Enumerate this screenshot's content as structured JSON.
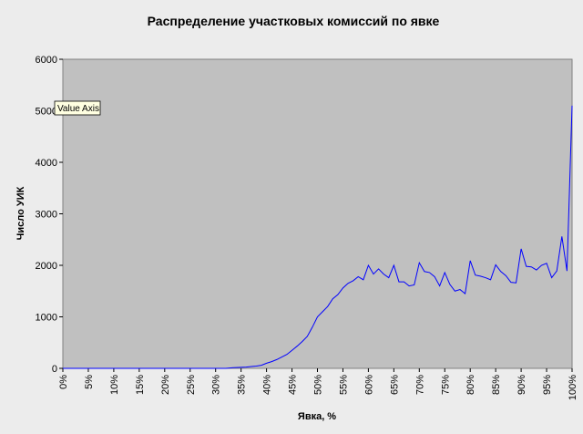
{
  "chart_data": {
    "type": "line",
    "title": "Распределение участковых комиссий по явке",
    "xlabel": "Явка, %",
    "ylabel": "Число УИК",
    "xlim": [
      0,
      100
    ],
    "ylim": [
      0,
      6000
    ],
    "x_tick_labels": [
      "0%",
      "5%",
      "10%",
      "15%",
      "20%",
      "25%",
      "30%",
      "35%",
      "40%",
      "45%",
      "50%",
      "55%",
      "60%",
      "65%",
      "70%",
      "75%",
      "80%",
      "85%",
      "90%",
      "95%",
      "100%"
    ],
    "y_tick_labels": [
      "0",
      "1000",
      "2000",
      "3000",
      "4000",
      "5000",
      "6000"
    ],
    "grid": false,
    "legend": "none",
    "tooltip": "Value Axis",
    "colors": {
      "plot_bg": "#c0c0c0",
      "page_bg": "#ececec",
      "line": "#0000ff",
      "tooltip_bg": "#ffffe1"
    },
    "series": [
      {
        "x": [
          0,
          1,
          2,
          3,
          4,
          5,
          6,
          7,
          8,
          9,
          10,
          11,
          12,
          13,
          14,
          15,
          16,
          17,
          18,
          19,
          20,
          21,
          22,
          23,
          24,
          25,
          26,
          27,
          28,
          29,
          30,
          31,
          32,
          33,
          34,
          35,
          36,
          37,
          38,
          39,
          40,
          41,
          42,
          43,
          44,
          45,
          46,
          47,
          48,
          49,
          50,
          51,
          52,
          53,
          54,
          55,
          56,
          57,
          58,
          59,
          60,
          61,
          62,
          63,
          64,
          65,
          66,
          67,
          68,
          69,
          70,
          71,
          72,
          73,
          74,
          75,
          76,
          77,
          78,
          79,
          80,
          81,
          82,
          83,
          84,
          85,
          86,
          87,
          88,
          89,
          90,
          91,
          92,
          93,
          94,
          95,
          96,
          97,
          98,
          99,
          100
        ],
        "values": [
          0,
          0,
          0,
          0,
          0,
          0,
          0,
          0,
          0,
          0,
          0,
          0,
          0,
          0,
          0,
          0,
          0,
          0,
          0,
          0,
          0,
          0,
          0,
          0,
          0,
          0,
          0,
          0,
          0,
          0,
          0,
          0,
          0,
          10,
          15,
          20,
          25,
          35,
          45,
          60,
          100,
          130,
          170,
          220,
          270,
          350,
          430,
          520,
          620,
          800,
          1000,
          1100,
          1200,
          1350,
          1430,
          1560,
          1650,
          1700,
          1780,
          1720,
          2000,
          1830,
          1930,
          1830,
          1760,
          2000,
          1680,
          1680,
          1600,
          1620,
          2050,
          1880,
          1860,
          1780,
          1600,
          1860,
          1630,
          1500,
          1530,
          1450,
          2090,
          1810,
          1790,
          1760,
          1720,
          2010,
          1880,
          1800,
          1670,
          1660,
          2320,
          1980,
          1970,
          1910,
          2000,
          2040,
          1760,
          1890,
          2560,
          1890,
          5100
        ]
      }
    ]
  }
}
